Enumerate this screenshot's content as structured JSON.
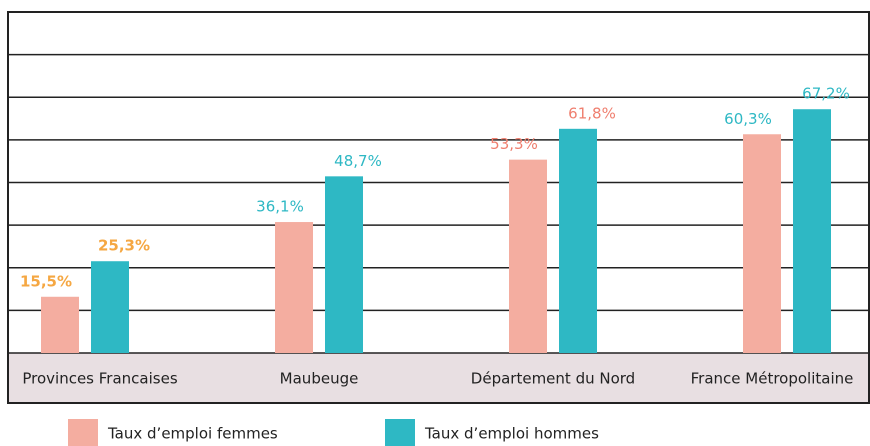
{
  "chart_data": {
    "type": "bar",
    "categories": [
      "Provinces Francaises",
      "Maubeuge",
      "Département du Nord",
      "France Métropolitaine"
    ],
    "series": [
      {
        "name": "Taux d’emploi femmes",
        "color": "#f4ada0",
        "values": [
          15.5,
          36.1,
          53.3,
          60.3
        ],
        "value_labels": [
          "15,5%",
          "36,1%",
          "53,3%",
          "60,3%"
        ],
        "label_colors": [
          "#f5a742",
          "#2eb8c4",
          "#ef7f6f",
          "#2eb8c4"
        ],
        "label_bold": [
          true,
          false,
          false,
          false
        ]
      },
      {
        "name": "Taux d’emploi hommes",
        "color": "#2eb8c4",
        "values": [
          25.3,
          48.7,
          61.8,
          67.2
        ],
        "value_labels": [
          "25,3%",
          "48,7%",
          "61,8%",
          "67,2%"
        ],
        "label_colors": [
          "#f5a742",
          "#2eb8c4",
          "#ef7f6f",
          "#2eb8c4"
        ],
        "label_bold": [
          true,
          false,
          false,
          false
        ]
      }
    ],
    "ylim": [
      0,
      94
    ],
    "yticks": [
      11.75,
      23.5,
      35.25,
      47,
      58.75,
      70.5,
      82.25
    ],
    "grid": true
  }
}
